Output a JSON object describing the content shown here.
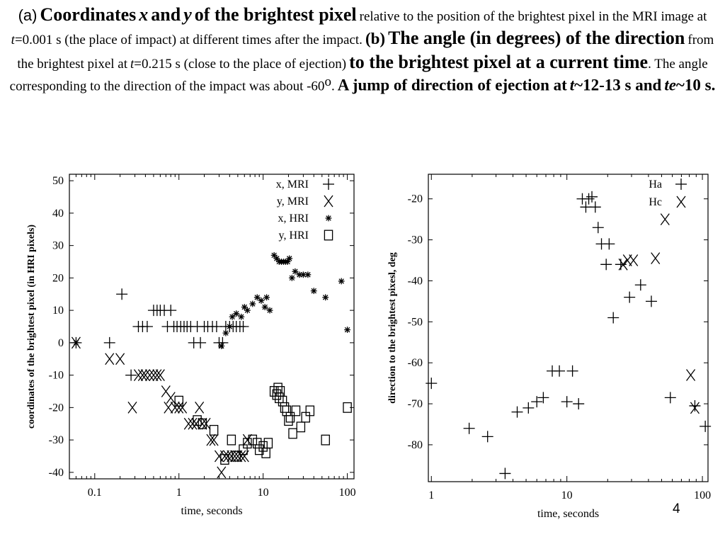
{
  "caption": {
    "a_marker": "(a)",
    "a_bold": "Coordinates",
    "x": "x",
    "and1": "and",
    "y": "y",
    "a_bold2": "of the brightest pixel",
    "a_text": "relative to the position of the brightest pixel in the MRI image at",
    "t": "t",
    "a_time": "=0.001 s (the place of impact) at different times after the impact.",
    "b_marker": "(b)",
    "b_bold": "The angle (in degrees) of the direction",
    "b_text": "from the brightest pixel at",
    "b_time": "=0.215 s (close to the place of ejection)",
    "b_bold2": "to the brightest pixel at a current time",
    "b_text2": ". The angle corresponding to the direction of the impact was about -60",
    "b_sup": "o",
    "b_dot": ".",
    "jump": "A jump of direction of ejection at",
    "jump2": "~12-13 s and",
    "te": "te",
    "jump3": "~10 s."
  },
  "slide_number": "4",
  "chart_data": [
    {
      "type": "scatter",
      "x_scale": "log",
      "xlabel": "time, seconds",
      "ylabel": "coordinates of the brightest pixel (in HRI pixels)",
      "xlim": [
        0.05,
        120
      ],
      "ylim": [
        -42,
        52
      ],
      "xticks": [
        0.1,
        1,
        10,
        100
      ],
      "xtick_labels": [
        "0.1",
        "1",
        "10",
        "100"
      ],
      "yticks": [
        -40,
        -30,
        -20,
        -10,
        0,
        10,
        20,
        30,
        40,
        50
      ],
      "legend_position": "top-right",
      "series": [
        {
          "name": "x, MRI",
          "marker": "plus",
          "points": [
            [
              0.06,
              0
            ],
            [
              0.15,
              0
            ],
            [
              0.21,
              15
            ],
            [
              0.27,
              -10
            ],
            [
              0.33,
              5
            ],
            [
              0.37,
              5
            ],
            [
              0.42,
              5
            ],
            [
              0.5,
              10
            ],
            [
              0.55,
              10
            ],
            [
              0.6,
              10
            ],
            [
              0.67,
              10
            ],
            [
              0.73,
              5
            ],
            [
              0.8,
              10
            ],
            [
              0.87,
              5
            ],
            [
              0.95,
              5
            ],
            [
              1.05,
              5
            ],
            [
              1.15,
              5
            ],
            [
              1.25,
              5
            ],
            [
              1.38,
              5
            ],
            [
              1.5,
              0
            ],
            [
              1.65,
              5
            ],
            [
              1.8,
              0
            ],
            [
              2.0,
              5
            ],
            [
              2.2,
              5
            ],
            [
              2.5,
              5
            ],
            [
              2.8,
              5
            ],
            [
              3.0,
              0
            ],
            [
              3.3,
              0
            ],
            [
              3.6,
              5
            ],
            [
              4.0,
              5
            ],
            [
              4.4,
              5
            ],
            [
              4.8,
              5
            ],
            [
              5.3,
              5
            ],
            [
              5.8,
              5
            ]
          ]
        },
        {
          "name": "y, MRI",
          "marker": "x",
          "points": [
            [
              0.06,
              0
            ],
            [
              0.15,
              -5
            ],
            [
              0.2,
              -5
            ],
            [
              0.28,
              -20
            ],
            [
              0.33,
              -10
            ],
            [
              0.37,
              -10
            ],
            [
              0.4,
              -10
            ],
            [
              0.45,
              -10
            ],
            [
              0.5,
              -10
            ],
            [
              0.55,
              -10
            ],
            [
              0.6,
              -10
            ],
            [
              0.7,
              -15
            ],
            [
              0.75,
              -20
            ],
            [
              0.8,
              -17
            ],
            [
              0.9,
              -20
            ],
            [
              1.0,
              -20
            ],
            [
              1.1,
              -20
            ],
            [
              1.3,
              -25
            ],
            [
              1.45,
              -25
            ],
            [
              1.6,
              -25
            ],
            [
              1.75,
              -20
            ],
            [
              1.9,
              -25
            ],
            [
              2.1,
              -25
            ],
            [
              2.4,
              -30
            ],
            [
              2.6,
              -30
            ],
            [
              3.0,
              -35
            ],
            [
              3.2,
              -40
            ],
            [
              3.5,
              -35
            ],
            [
              3.8,
              -35
            ],
            [
              4.2,
              -35
            ],
            [
              4.6,
              -35
            ],
            [
              5.0,
              -35
            ],
            [
              5.5,
              -35
            ],
            [
              6.0,
              -35
            ],
            [
              6.5,
              -30
            ]
          ]
        },
        {
          "name": "x, HRI",
          "marker": "star",
          "points": [
            [
              0.06,
              0
            ],
            [
              3.2,
              -1
            ],
            [
              3.6,
              3
            ],
            [
              4.0,
              5
            ],
            [
              4.3,
              8
            ],
            [
              4.8,
              9
            ],
            [
              5.5,
              8
            ],
            [
              6.0,
              11
            ],
            [
              6.5,
              10
            ],
            [
              7.5,
              12
            ],
            [
              8.5,
              14
            ],
            [
              9.5,
              13
            ],
            [
              10.5,
              11
            ],
            [
              11.0,
              14
            ],
            [
              12.0,
              10
            ],
            [
              13.5,
              27
            ],
            [
              14.5,
              26
            ],
            [
              15.5,
              25
            ],
            [
              16.5,
              25
            ],
            [
              17.5,
              25
            ],
            [
              18.5,
              25
            ],
            [
              19.5,
              25
            ],
            [
              20.5,
              26
            ],
            [
              22.0,
              20
            ],
            [
              24.0,
              22
            ],
            [
              27.0,
              21
            ],
            [
              30.0,
              21
            ],
            [
              34.0,
              21
            ],
            [
              40.0,
              16
            ],
            [
              55.0,
              14
            ],
            [
              85.0,
              19
            ],
            [
              100.0,
              4
            ]
          ]
        },
        {
          "name": "y, HRI",
          "marker": "square",
          "points": [
            [
              1.0,
              -18
            ],
            [
              1.65,
              -24
            ],
            [
              1.9,
              -25
            ],
            [
              2.6,
              -27
            ],
            [
              3.5,
              -36
            ],
            [
              4.2,
              -30
            ],
            [
              4.8,
              -35
            ],
            [
              5.8,
              -33
            ],
            [
              6.5,
              -31
            ],
            [
              7.5,
              -30
            ],
            [
              8.5,
              -31
            ],
            [
              9.0,
              -33
            ],
            [
              10.0,
              -32
            ],
            [
              10.8,
              -34
            ],
            [
              11.5,
              -31
            ],
            [
              13.5,
              -15
            ],
            [
              14.5,
              -16
            ],
            [
              15.0,
              -14
            ],
            [
              15.5,
              -17
            ],
            [
              16.0,
              -15
            ],
            [
              17.0,
              -18
            ],
            [
              18.0,
              -20
            ],
            [
              19.0,
              -21
            ],
            [
              20.0,
              -24
            ],
            [
              21.0,
              -23
            ],
            [
              22.5,
              -28
            ],
            [
              24.5,
              -21
            ],
            [
              28.0,
              -26
            ],
            [
              32.0,
              -23
            ],
            [
              36.0,
              -21
            ],
            [
              55.0,
              -30
            ],
            [
              100.0,
              -20
            ]
          ]
        }
      ]
    },
    {
      "type": "scatter",
      "x_scale": "log",
      "xlabel": "time, seconds",
      "ylabel": "direction to the brightest pixesl, deg",
      "xlim": [
        0.95,
        110
      ],
      "ylim": [
        -89,
        -14
      ],
      "xticks": [
        1,
        10,
        100
      ],
      "xtick_labels": [
        "1",
        "10",
        "100"
      ],
      "yticks": [
        -80,
        -70,
        -60,
        -50,
        -40,
        -30,
        -20
      ],
      "legend_position": "top-right",
      "series": [
        {
          "name": "Ha",
          "marker": "plus",
          "points": [
            [
              1.0,
              -65
            ],
            [
              1.9,
              -76
            ],
            [
              2.6,
              -78
            ],
            [
              3.5,
              -87
            ],
            [
              4.3,
              -72
            ],
            [
              5.2,
              -71
            ],
            [
              6.0,
              -69.5
            ],
            [
              6.7,
              -68.5
            ],
            [
              7.8,
              -62
            ],
            [
              8.8,
              -62
            ],
            [
              10.0,
              -69.5
            ],
            [
              11.0,
              -62
            ],
            [
              12.2,
              -70
            ],
            [
              13.0,
              -20
            ],
            [
              13.8,
              -22
            ],
            [
              14.5,
              -20
            ],
            [
              15.3,
              -19.5
            ],
            [
              16.2,
              -22
            ],
            [
              17.0,
              -27
            ],
            [
              18.0,
              -31
            ],
            [
              19.5,
              -36
            ],
            [
              20.5,
              -31
            ],
            [
              22.0,
              -49
            ],
            [
              25.0,
              -36
            ],
            [
              29.0,
              -44
            ],
            [
              35.0,
              -41
            ],
            [
              42.0,
              -45
            ],
            [
              58.0,
              -68.5
            ],
            [
              88.0,
              -70.5
            ],
            [
              105.0,
              -75.5
            ]
          ]
        },
        {
          "name": "Hc",
          "marker": "x",
          "points": [
            [
              26.0,
              -36
            ],
            [
              28.0,
              -35
            ],
            [
              31.0,
              -35
            ],
            [
              45.0,
              -34.5
            ],
            [
              53.0,
              -25
            ],
            [
              82.0,
              -63
            ],
            [
              88.0,
              -71
            ]
          ]
        }
      ]
    }
  ]
}
